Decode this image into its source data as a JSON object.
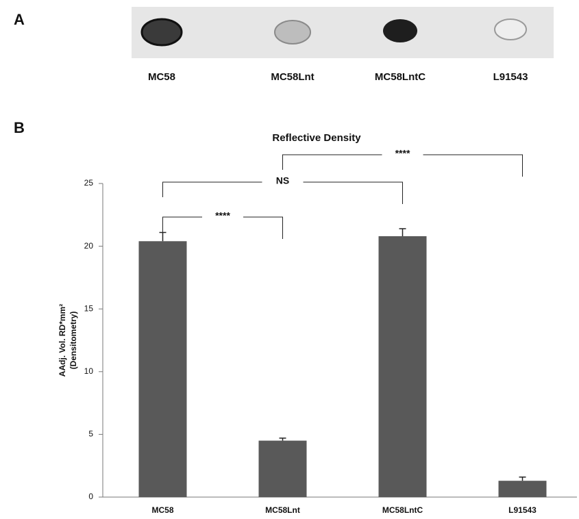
{
  "panel_a": {
    "label": "A",
    "lanes": [
      "MC58",
      "MC58Lnt",
      "MC58LntC",
      "L91543"
    ]
  },
  "chart_data": {
    "type": "bar",
    "panel_label": "B",
    "title": "Reflective Density",
    "ylabel": [
      "AAdj. Vol. RD*mm²",
      "(Densitometry)"
    ],
    "categories": [
      "MC58",
      "MC58Lnt",
      "MC58LntC",
      "L91543"
    ],
    "values": [
      20.4,
      4.5,
      20.8,
      1.3
    ],
    "errors": [
      0.7,
      0.2,
      0.6,
      0.3
    ],
    "color": "#595959",
    "ylim": [
      0,
      25
    ],
    "yticks": [
      0,
      5,
      10,
      15,
      20,
      25
    ],
    "annotations": [
      {
        "text": "****",
        "pair": [
          0,
          1
        ]
      },
      {
        "text": "NS",
        "pair": [
          0,
          2
        ]
      },
      {
        "text": "****",
        "pair": [
          1,
          3
        ]
      }
    ]
  }
}
